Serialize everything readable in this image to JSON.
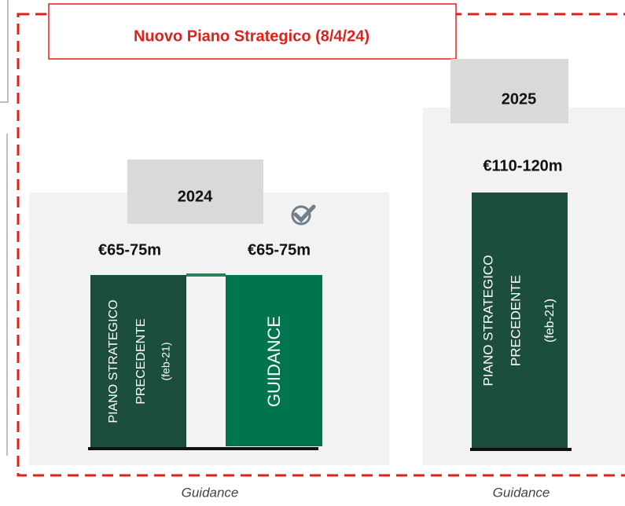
{
  "title": "Nuovo Piano Strategico (8/4/24)",
  "panels": [
    {
      "year": "2024",
      "amounts": [
        "€65-75m",
        "€65-75m"
      ],
      "bars": [
        {
          "lines": [
            "PIANO STRATEGICO",
            "PRECEDENTE",
            "(feb-21)"
          ]
        },
        {
          "lines": [
            "GUIDANCE"
          ]
        }
      ],
      "caption": "Guidance"
    },
    {
      "year": "2025",
      "amounts": [
        "€110-120m"
      ],
      "bars": [
        {
          "lines": [
            "PIANO STRATEGICO",
            "PRECEDENTE",
            "(feb-21)"
          ]
        }
      ],
      "caption": "Guidance"
    }
  ]
}
